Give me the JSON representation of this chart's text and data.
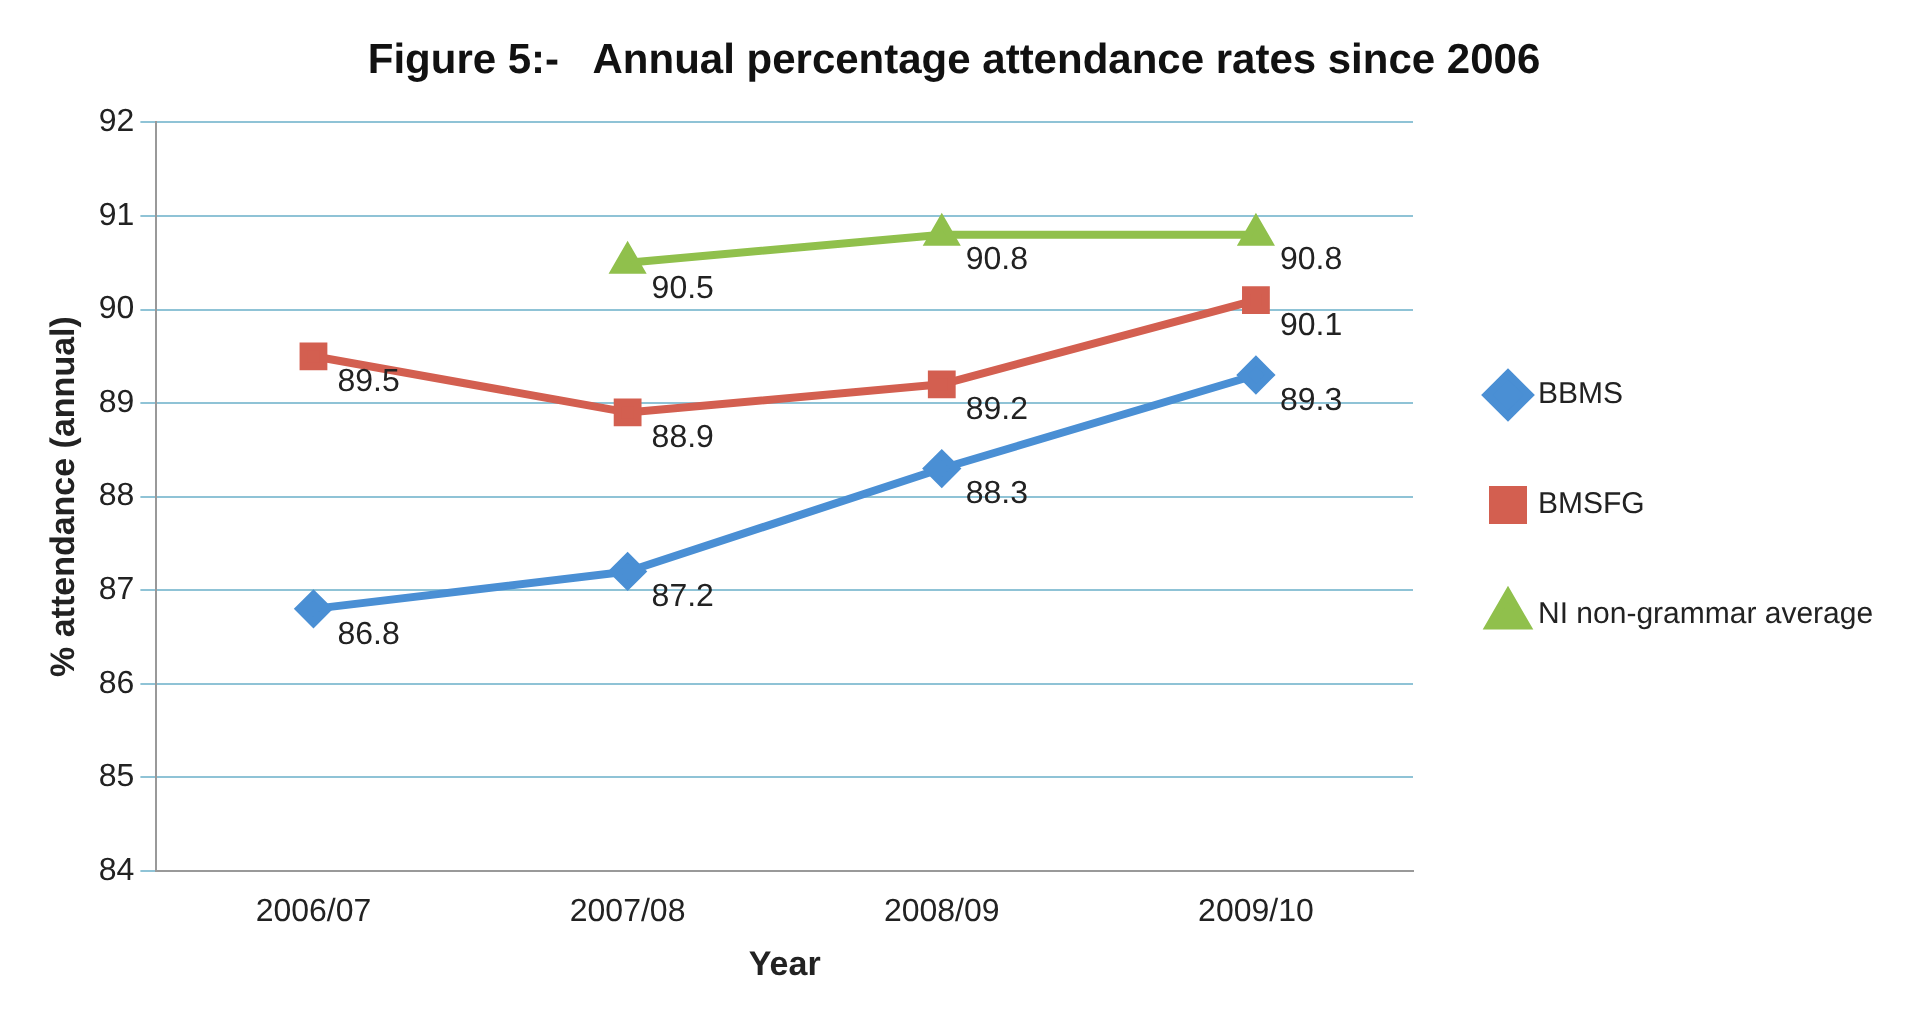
{
  "chart_data": {
    "type": "line",
    "title": "Figure 5:-   Annual percentage attendance rates since 2006",
    "xlabel": "Year",
    "ylabel": "% attendance (annual)",
    "categories": [
      "2006/07",
      "2007/08",
      "2008/09",
      "2009/10"
    ],
    "series": [
      {
        "name": "BBMS",
        "color": "#4a8fd4",
        "marker": "diamond",
        "values": [
          86.8,
          87.2,
          88.3,
          89.3
        ]
      },
      {
        "name": "BMSFG",
        "color": "#d35f50",
        "marker": "square",
        "values": [
          89.5,
          88.9,
          89.2,
          90.1
        ]
      },
      {
        "name": "NI non-grammar average",
        "color": "#90c04c",
        "marker": "triangle",
        "values": [
          null,
          90.5,
          90.8,
          90.8
        ]
      }
    ],
    "ylim": [
      84,
      92
    ],
    "yticks": [
      84,
      85,
      86,
      87,
      88,
      89,
      90,
      91,
      92
    ],
    "grid": "y",
    "legend": "right",
    "data_labels": true,
    "line_style": "solid"
  }
}
